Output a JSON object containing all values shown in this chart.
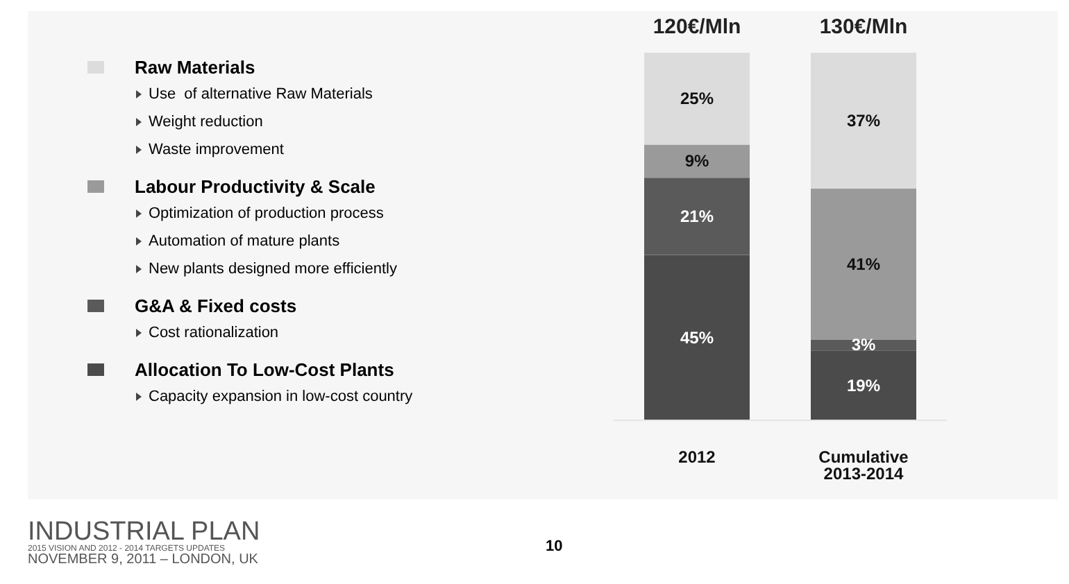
{
  "chart_data": {
    "type": "bar",
    "stacked": true,
    "categories": [
      "2012",
      "Cumulative 2013-2014"
    ],
    "series": [
      {
        "name": "Allocation To Low-Cost Plants",
        "color": "#4b4b4b",
        "values": [
          45,
          19
        ],
        "value_labels": [
          "45%",
          "19%"
        ]
      },
      {
        "name": "G&A & Fixed costs",
        "color": "#5a5a5a",
        "values": [
          21,
          3
        ],
        "value_labels": [
          "21%",
          "3%"
        ]
      },
      {
        "name": "Labour Productivity & Scale",
        "color": "#9a9a9a",
        "values": [
          9,
          41
        ],
        "value_labels": [
          "9%",
          "41%"
        ]
      },
      {
        "name": "Raw Materials",
        "color": "#dcdcdc",
        "values": [
          25,
          37
        ],
        "value_labels": [
          "25%",
          "37%"
        ]
      }
    ],
    "legend": "left",
    "annotations": [
      "Use  of alternative Raw Materials",
      "Weight reduction",
      "Waste improvement",
      "Optimization of production process",
      "Automation of mature plants",
      "New plants designed more efficiently",
      "Cost rationalization",
      "Capacity expansion in low-cost country",
      "INDUSTRIAL PLAN",
      "2015 VISION AND 2012 - 2014 TARGETS UPDATES",
      "NOVEMBER 9, 2011 – LONDON, UK",
      "10",
      {
        "text": "120€/Mln",
        "x": "2012",
        "y": 100
      },
      {
        "text": "130€/Mln",
        "x": "Cumulative 2013-2014",
        "y": 100
      }
    ]
  }
}
